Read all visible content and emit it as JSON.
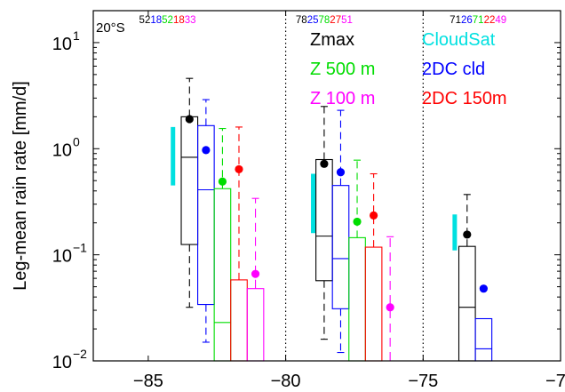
{
  "chart_data": {
    "type": "box",
    "ylabel": "Leg-mean rain rate [mm/d]",
    "xlabel": "",
    "xlim": [
      -87,
      -70
    ],
    "ylim": [
      0.01,
      20
    ],
    "y_scale": "log",
    "x_ticks": [
      -85,
      -80,
      -75,
      -70
    ],
    "x_tick_labels": [
      "−85",
      "−80",
      "−75",
      "−70"
    ],
    "y_ticks": [
      {
        "value": 0.01,
        "mantissa": "10",
        "exp": "−2"
      },
      {
        "value": 0.1,
        "mantissa": "10",
        "exp": "−1"
      },
      {
        "value": 1,
        "mantissa": "10",
        "exp": "0"
      },
      {
        "value": 10,
        "mantissa": "10",
        "exp": "1"
      }
    ],
    "region_dividers": [
      -80,
      -75
    ],
    "corner_label": "20°S",
    "legend": [
      {
        "label": "Zmax",
        "color": "#000000",
        "column": "left"
      },
      {
        "label": "Z 500 m",
        "color": "#00dd00",
        "column": "left"
      },
      {
        "label": "Z 100 m",
        "color": "#ff00ff",
        "column": "left"
      },
      {
        "label": "CloudSat",
        "color": "#00e0e0",
        "column": "right"
      },
      {
        "label": "2DC cld",
        "color": "#0000ff",
        "column": "right"
      },
      {
        "label": "2DC 150m",
        "color": "#ff0000",
        "column": "right"
      }
    ],
    "counts": [
      {
        "x": -84.3,
        "values": [
          {
            "text": "52",
            "color": "#000000"
          },
          {
            "text": "18",
            "color": "#0000ff"
          },
          {
            "text": "52",
            "color": "#00dd00"
          },
          {
            "text": "18",
            "color": "#ff0000"
          },
          {
            "text": "33",
            "color": "#ff00ff"
          }
        ]
      },
      {
        "x": -78.6,
        "values": [
          {
            "text": "78",
            "color": "#000000"
          },
          {
            "text": "25",
            "color": "#0000ff"
          },
          {
            "text": "78",
            "color": "#00dd00"
          },
          {
            "text": "27",
            "color": "#ff0000"
          },
          {
            "text": "51",
            "color": "#ff00ff"
          }
        ]
      },
      {
        "x": -73.0,
        "values": [
          {
            "text": "71",
            "color": "#000000"
          },
          {
            "text": "26",
            "color": "#0000ff"
          },
          {
            "text": "71",
            "color": "#00dd00"
          },
          {
            "text": "22",
            "color": "#ff0000"
          },
          {
            "text": "49",
            "color": "#ff00ff"
          }
        ]
      }
    ],
    "cloudsat_bars": [
      {
        "x": -84.1,
        "low": 0.45,
        "high": 1.6
      },
      {
        "x": -79.0,
        "low": 0.16,
        "high": 0.58
      },
      {
        "x": -73.85,
        "low": 0.11,
        "high": 0.24
      }
    ],
    "series": [
      {
        "name": "Zmax",
        "color": "#000000",
        "whisker_dash": "8,5",
        "boxes": [
          {
            "x_left": -83.8,
            "x_right": -83.2,
            "whisker_low": 0.032,
            "q1": 0.125,
            "median": 0.83,
            "q3": 2.0,
            "whisker_high": 4.6,
            "mean": 1.9
          },
          {
            "x_left": -78.9,
            "x_right": -78.3,
            "whisker_low": 0.016,
            "q1": 0.057,
            "median": 0.15,
            "q3": 0.79,
            "whisker_high": 2.5,
            "mean": 0.72
          },
          {
            "x_left": -73.7,
            "x_right": -73.1,
            "whisker_low": 0.01,
            "q1": 0.01,
            "median": 0.032,
            "q3": 0.12,
            "whisker_high": 0.37,
            "mean": 0.155
          }
        ]
      },
      {
        "name": "2DC cld",
        "color": "#0000ff",
        "whisker_dash": "8,5",
        "boxes": [
          {
            "x_left": -83.2,
            "x_right": -82.6,
            "whisker_low": 0.015,
            "q1": 0.034,
            "median": 0.41,
            "q3": 1.65,
            "whisker_high": 2.9,
            "mean": 0.97
          },
          {
            "x_left": -78.3,
            "x_right": -77.7,
            "whisker_low": 0.012,
            "q1": 0.031,
            "median": 0.092,
            "q3": 0.45,
            "whisker_high": 2.3,
            "mean": 0.6
          },
          {
            "x_left": -73.1,
            "x_right": -72.5,
            "whisker_low": 0.01,
            "q1": 0.01,
            "median": 0.013,
            "q3": 0.025,
            "whisker_high": 0.025,
            "mean": 0.048
          }
        ]
      },
      {
        "name": "Z 500 m",
        "color": "#00dd00",
        "whisker_dash": "8,5",
        "boxes": [
          {
            "x_left": -82.6,
            "x_right": -82.0,
            "whisker_low": 0.01,
            "q1": 0.01,
            "median": 0.023,
            "q3": 0.42,
            "whisker_high": 1.55,
            "mean": 0.49
          },
          {
            "x_left": -77.7,
            "x_right": -77.1,
            "whisker_low": 0.01,
            "q1": 0.01,
            "median": 0.01,
            "q3": 0.145,
            "whisker_high": 0.78,
            "mean": 0.205
          }
        ]
      },
      {
        "name": "2DC 150m",
        "color": "#ff0000",
        "whisker_dash": "8,5",
        "boxes": [
          {
            "x_left": -82.0,
            "x_right": -81.4,
            "whisker_low": 0.01,
            "q1": 0.01,
            "median": 0.01,
            "q3": 0.058,
            "whisker_high": 1.6,
            "mean": 0.64
          },
          {
            "x_left": -77.1,
            "x_right": -76.5,
            "whisker_low": 0.01,
            "q1": 0.01,
            "median": 0.01,
            "q3": 0.118,
            "whisker_high": 0.58,
            "mean": 0.235
          }
        ]
      },
      {
        "name": "Z 100 m",
        "color": "#ff00ff",
        "whisker_dash": "10,6",
        "boxes": [
          {
            "x_left": -81.4,
            "x_right": -80.8,
            "whisker_low": 0.01,
            "q1": 0.01,
            "median": 0.01,
            "q3": 0.048,
            "whisker_high": 0.34,
            "mean": 0.066
          },
          {
            "x_left": -76.5,
            "x_right": -75.9,
            "whisker_low": 0.01,
            "q1": 0.01,
            "median": 0.01,
            "q3": 0.01,
            "whisker_high": 0.148,
            "mean": 0.032
          }
        ]
      }
    ]
  }
}
